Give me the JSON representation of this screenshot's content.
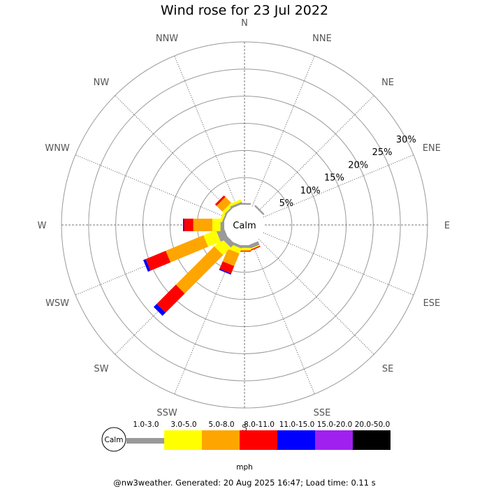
{
  "page": {
    "title": "Wind rose for 23 Jul 2022",
    "footer": "@nw3weather. Generated: 20 Aug 2025 16:47; Load time: 0.11 s"
  },
  "chart_data": {
    "type": "windrose",
    "title": "Wind rose for 23 Jul 2022",
    "directions": [
      "N",
      "NNE",
      "NE",
      "ENE",
      "E",
      "ESE",
      "SE",
      "SSE",
      "S",
      "SSW",
      "SW",
      "WSW",
      "W",
      "WNW",
      "NW",
      "NNW"
    ],
    "radial_ticks": [
      "5%",
      "10%",
      "15%",
      "20%",
      "25%",
      "30%"
    ],
    "radial_max_percent": 30,
    "calm_label": "Calm",
    "unit_label": "mph",
    "speed_bins": [
      {
        "label": "1.0-3.0",
        "color": "#999999"
      },
      {
        "label": "3.0-5.0",
        "color": "#ffff00"
      },
      {
        "label": "5.0-8.0",
        "color": "#ffa500"
      },
      {
        "label": "8.0-11.0",
        "color": "#ff0000"
      },
      {
        "label": "11.0-15.0",
        "color": "#0000ff"
      },
      {
        "label": "15.0-20.0",
        "color": "#a020f0"
      },
      {
        "label": "20.0-50.0",
        "color": "#000000"
      }
    ],
    "series_percent_by_direction": {
      "N": [
        0.3,
        0.0,
        0.0,
        0.0,
        0.0,
        0.0,
        0.0
      ],
      "NNE": [
        0.0,
        0.0,
        0.0,
        0.0,
        0.0,
        0.0,
        0.0
      ],
      "NE": [
        0.3,
        0.0,
        0.0,
        0.0,
        0.0,
        0.0,
        0.0
      ],
      "ENE": [
        0.0,
        0.0,
        0.0,
        0.0,
        0.0,
        0.0,
        0.0
      ],
      "E": [
        0.0,
        0.0,
        0.0,
        0.0,
        0.0,
        0.0,
        0.0
      ],
      "ESE": [
        0.0,
        0.0,
        0.0,
        0.0,
        0.0,
        0.0,
        0.0
      ],
      "SE": [
        0.0,
        0.0,
        0.0,
        0.0,
        0.0,
        0.0,
        0.0
      ],
      "SSE": [
        0.7,
        0.2,
        0.0,
        0.2,
        0.0,
        0.0,
        0.0
      ],
      "S": [
        0.5,
        0.5,
        0.0,
        0.2,
        0.0,
        0.0,
        0.0
      ],
      "SSW": [
        0.5,
        1.0,
        2.5,
        1.5,
        0.2,
        0.0,
        0.0
      ],
      "SW": [
        1.0,
        2.0,
        10.0,
        5.0,
        0.8,
        0.0,
        0.0
      ],
      "WSW": [
        1.5,
        2.5,
        7.5,
        4.0,
        0.5,
        0.0,
        0.0
      ],
      "W": [
        0.7,
        1.5,
        3.5,
        1.7,
        0.2,
        0.0,
        0.0
      ],
      "WNW": [
        0.3,
        0.5,
        0.0,
        0.0,
        0.0,
        0.0,
        0.0
      ],
      "NW": [
        0.3,
        0.6,
        1.5,
        0.4,
        0.0,
        0.0,
        0.0
      ],
      "NNW": [
        0.4,
        0.5,
        0.0,
        0.0,
        0.0,
        0.0,
        0.0
      ]
    },
    "grid": true,
    "legend_placement": "bottom"
  }
}
